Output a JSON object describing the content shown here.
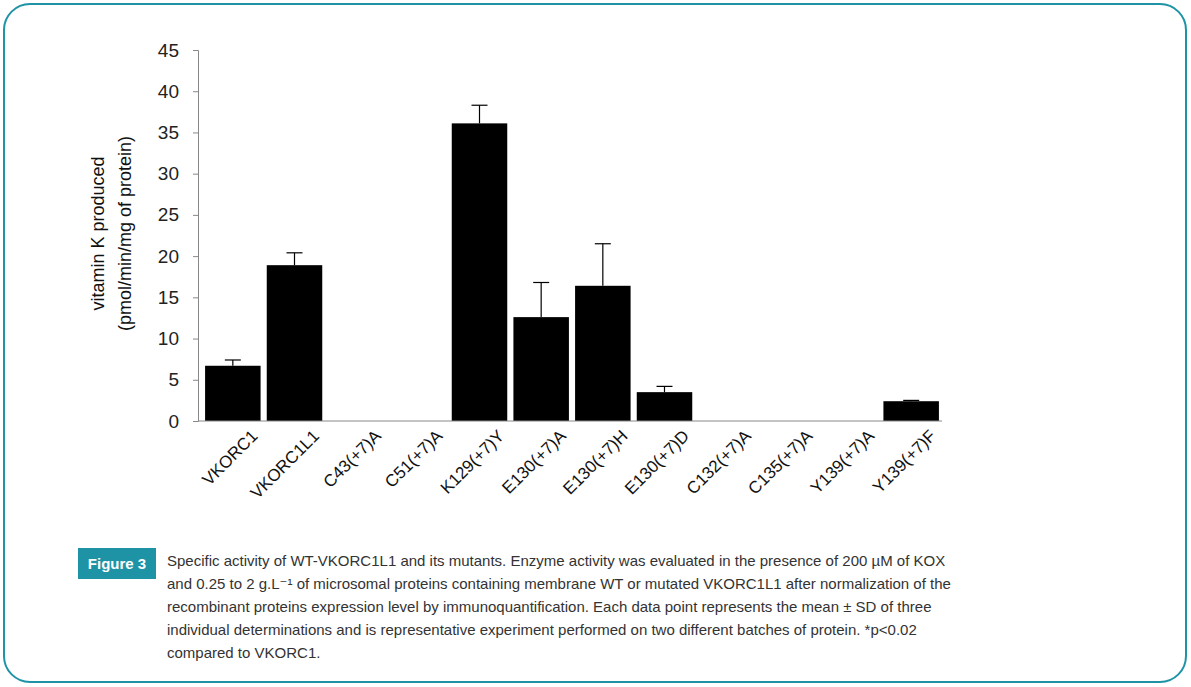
{
  "chart_data": {
    "type": "bar",
    "y_label": [
      "vitamin K produced",
      "(pmol/min/mg of protein)"
    ],
    "categories": [
      "VKORC1",
      "VKORC1L1",
      "C43(+7)A",
      "C51(+7)A",
      "K129(+7)Y",
      "E130(+7)A",
      "E130(+7)H",
      "E130(+7)D",
      "C132(+7)A",
      "C135(+7)A",
      "Y139(+7)A",
      "Y139(+7)F"
    ],
    "values": [
      6.7,
      18.9,
      0,
      0,
      36.1,
      12.6,
      16.4,
      3.5,
      0,
      0,
      0,
      2.4
    ],
    "errors": [
      0.7,
      1.5,
      null,
      null,
      2.2,
      4.2,
      5.1,
      0.7,
      null,
      null,
      null,
      0.1
    ],
    "color": "#000000",
    "ylim": [
      0,
      45
    ],
    "yticks": [
      0,
      5,
      10,
      15,
      20,
      25,
      30,
      35,
      40,
      45
    ],
    "grid": false
  },
  "figure": {
    "label": "Figure 3",
    "caption_lines": [
      "Specific activity of WT-VKORC1L1 and its mutants. Enzyme activity was evaluated in the presence of 200 µM of KOX",
      "and 0.25 to 2 g.L⁻¹ of microsomal proteins containing membrane WT or mutated VKORC1L1 after normalization of the",
      "recombinant proteins expression level by immunoquantification. Each data point represents the mean ± SD of three",
      "individual determinations and is representative experiment performed on two different batches of protein. *p<0.02",
      "compared to VKORC1."
    ]
  }
}
